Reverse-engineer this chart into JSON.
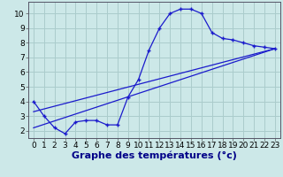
{
  "xlabel": "Graphe des températures (°c)",
  "background_color": "#cce8e8",
  "grid_color": "#aacccc",
  "line_color": "#1a1acc",
  "xlim": [
    -0.5,
    23.5
  ],
  "ylim": [
    1.5,
    10.8
  ],
  "xticks": [
    0,
    1,
    2,
    3,
    4,
    5,
    6,
    7,
    8,
    9,
    10,
    11,
    12,
    13,
    14,
    15,
    16,
    17,
    18,
    19,
    20,
    21,
    22,
    23
  ],
  "yticks": [
    2,
    3,
    4,
    5,
    6,
    7,
    8,
    9,
    10
  ],
  "series1_x": [
    0,
    1,
    2,
    3,
    4,
    5,
    6,
    7,
    8,
    9,
    10,
    11,
    12,
    13,
    14,
    15,
    16,
    17,
    18,
    19,
    20,
    21,
    22,
    23
  ],
  "series1_y": [
    4.0,
    3.0,
    2.2,
    1.8,
    2.6,
    2.7,
    2.7,
    2.4,
    2.4,
    4.3,
    5.5,
    7.5,
    9.0,
    10.0,
    10.3,
    10.3,
    10.0,
    8.7,
    8.3,
    8.2,
    8.0,
    7.8,
    7.7,
    7.6
  ],
  "series2_x": [
    0,
    23
  ],
  "series2_y": [
    3.3,
    7.6
  ],
  "series3_x": [
    0,
    23
  ],
  "series3_y": [
    2.2,
    7.6
  ],
  "xlabel_fontsize": 8,
  "tick_fontsize": 6.5
}
